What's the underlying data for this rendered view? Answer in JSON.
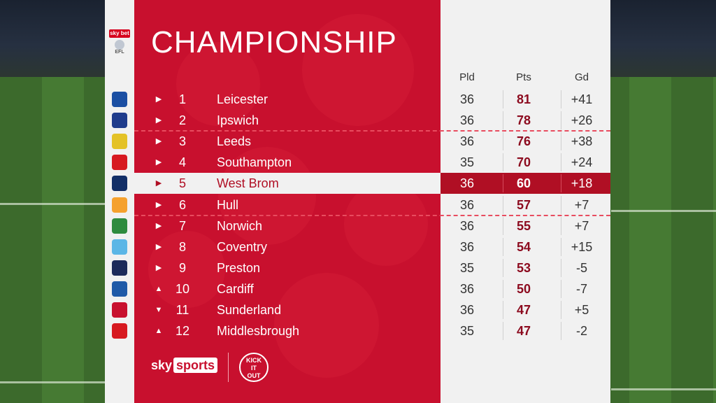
{
  "title": "CHAMPIONSHIP",
  "efl_badge": {
    "top": "sky bet",
    "bottom": "EFL"
  },
  "headers": {
    "pld": "Pld",
    "pts": "Pts",
    "gd": "Gd"
  },
  "highlight_color": "#b00f24",
  "accent_color": "#c8102e",
  "rows": [
    {
      "pos": "1",
      "arrow": "▶",
      "team": "Leicester",
      "pld": "36",
      "pts": "81",
      "gd": "+41",
      "crest": "#1b4fa3"
    },
    {
      "pos": "2",
      "arrow": "▶",
      "team": "Ipswich",
      "pld": "36",
      "pts": "78",
      "gd": "+26",
      "crest": "#1f3c8c"
    },
    {
      "pos": "3",
      "arrow": "▶",
      "team": "Leeds",
      "pld": "36",
      "pts": "76",
      "gd": "+38",
      "crest": "#e4c227"
    },
    {
      "pos": "4",
      "arrow": "▶",
      "team": "Southampton",
      "pld": "35",
      "pts": "70",
      "gd": "+24",
      "crest": "#d71920"
    },
    {
      "pos": "5",
      "arrow": "▶",
      "team": "West Brom",
      "pld": "36",
      "pts": "60",
      "gd": "+18",
      "crest": "#122f67"
    },
    {
      "pos": "6",
      "arrow": "▶",
      "team": "Hull",
      "pld": "36",
      "pts": "57",
      "gd": "+7",
      "crest": "#f5a12d"
    },
    {
      "pos": "7",
      "arrow": "▶",
      "team": "Norwich",
      "pld": "36",
      "pts": "55",
      "gd": "+7",
      "crest": "#2e8b3e"
    },
    {
      "pos": "8",
      "arrow": "▶",
      "team": "Coventry",
      "pld": "36",
      "pts": "54",
      "gd": "+15",
      "crest": "#5bb6e6"
    },
    {
      "pos": "9",
      "arrow": "▶",
      "team": "Preston",
      "pld": "35",
      "pts": "53",
      "gd": "-5",
      "crest": "#1c2a5a"
    },
    {
      "pos": "10",
      "arrow": "▲",
      "team": "Cardiff",
      "pld": "36",
      "pts": "50",
      "gd": "-7",
      "crest": "#1f5aa8"
    },
    {
      "pos": "11",
      "arrow": "▼",
      "team": "Sunderland",
      "pld": "36",
      "pts": "47",
      "gd": "+5",
      "crest": "#c8102e"
    },
    {
      "pos": "12",
      "arrow": "▲",
      "team": "Middlesbrough",
      "pld": "35",
      "pts": "47",
      "gd": "-2",
      "crest": "#d71920"
    }
  ],
  "footer": {
    "sky": "sky",
    "sports": "sports",
    "kick_it_out": [
      "KICK",
      "IT",
      "OUT"
    ]
  }
}
